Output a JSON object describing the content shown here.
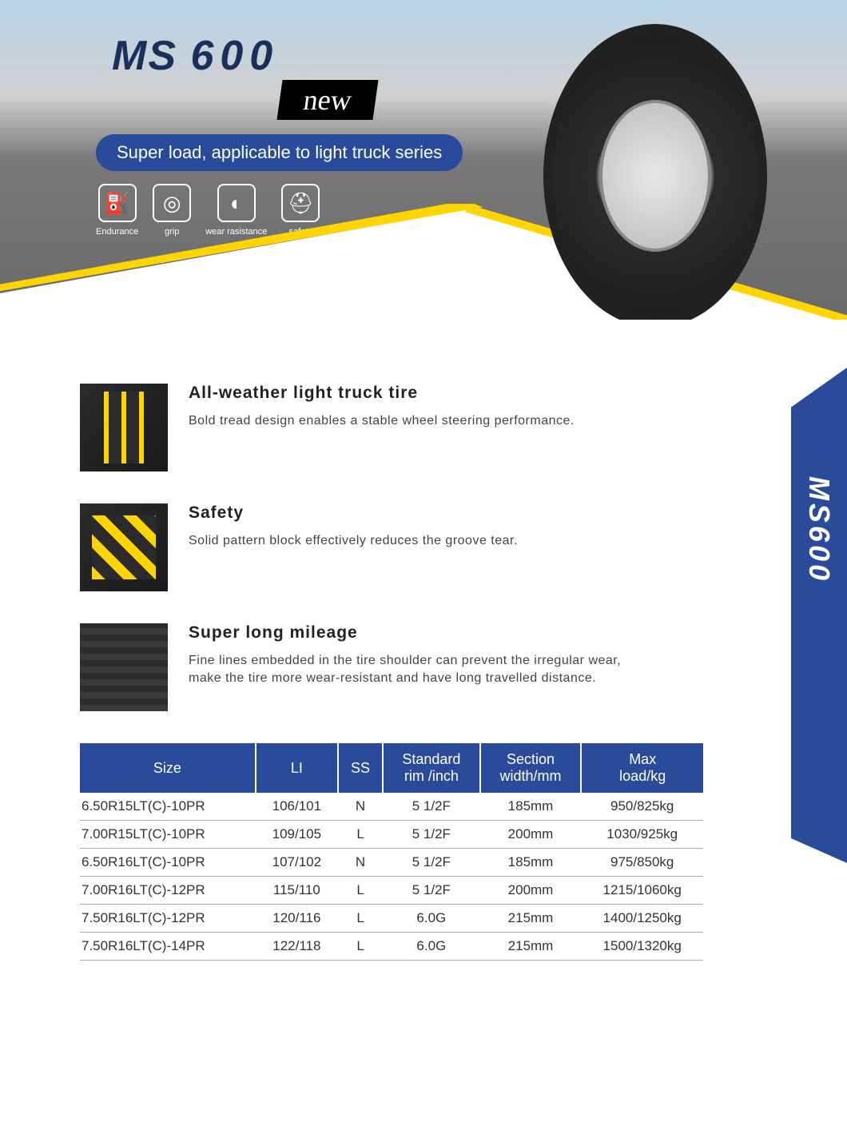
{
  "brand": {
    "ms": "MS",
    "num": "600"
  },
  "new_label": "new",
  "tagline": "Super load, applicable to light truck series",
  "icons": [
    {
      "glyph": "⛽",
      "label": "Endurance"
    },
    {
      "glyph": "◎",
      "label": "grip"
    },
    {
      "glyph": "◐",
      "label": "wear rasistance"
    },
    {
      "glyph": "⛑",
      "label": "safety"
    }
  ],
  "side_label": "MS600",
  "features": [
    {
      "title": "All-weather light truck tire",
      "desc": "Bold tread design enables a stable wheel steering performance."
    },
    {
      "title": "Safety",
      "desc": "Solid pattern block effectively reduces the groove tear."
    },
    {
      "title": "Super long mileage",
      "desc": "Fine lines embedded in the tire shoulder can prevent the irregular wear, make the tire more wear-resistant and have long travelled distance."
    }
  ],
  "table": {
    "columns": [
      "Size",
      "LI",
      "SS",
      "Standard rim /inch",
      "Section width/mm",
      "Max load/kg"
    ],
    "rows": [
      [
        "6.50R15LT(C)-10PR",
        "106/101",
        "N",
        "5 1/2F",
        "185mm",
        "950/825kg"
      ],
      [
        "7.00R15LT(C)-10PR",
        "109/105",
        "L",
        "5 1/2F",
        "200mm",
        "1030/925kg"
      ],
      [
        "6.50R16LT(C)-10PR",
        "107/102",
        "N",
        "5 1/2F",
        "185mm",
        "975/850kg"
      ],
      [
        "7.00R16LT(C)-12PR",
        "115/110",
        "L",
        "5 1/2F",
        "200mm",
        "1215/1060kg"
      ],
      [
        "7.50R16LT(C)-12PR",
        "120/116",
        "L",
        "6.0G",
        "215mm",
        "1400/1250kg"
      ],
      [
        "7.50R16LT(C)-14PR",
        "122/118",
        "L",
        "6.0G",
        "215mm",
        "1500/1320kg"
      ]
    ]
  },
  "colors": {
    "primary": "#2a4b9b",
    "accent": "#ffd500"
  }
}
